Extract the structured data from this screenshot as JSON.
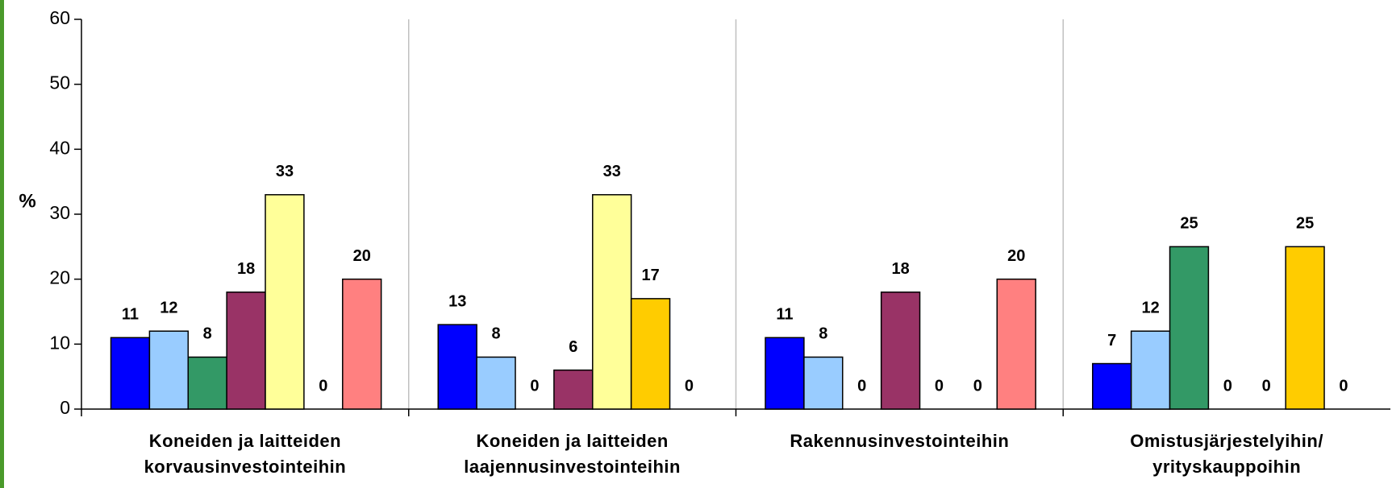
{
  "chart_data": {
    "type": "bar",
    "y_label": "%",
    "categories": [
      "Koneiden ja laitteiden korvausinvestointeihin",
      "Koneiden ja laitteiden laajennusinvestointeihin",
      "Rakennusinvestointeihin",
      "Omistusjärjestelyihin/ yrityskauppoihin"
    ],
    "series": [
      {
        "color": "#0000ff",
        "values": [
          11,
          13,
          11,
          7
        ]
      },
      {
        "color": "#99ccff",
        "values": [
          12,
          8,
          8,
          12
        ]
      },
      {
        "color": "#339966",
        "values": [
          8,
          0,
          0,
          25
        ]
      },
      {
        "color": "#993366",
        "values": [
          18,
          6,
          18,
          0
        ]
      },
      {
        "color": "#ffff99",
        "values": [
          33,
          33,
          0,
          0
        ]
      },
      {
        "color": "#ffcc00",
        "values": [
          0,
          17,
          0,
          25
        ]
      },
      {
        "color": "#ff8080",
        "values": [
          20,
          0,
          20,
          0
        ]
      }
    ],
    "ylim": [
      0,
      60
    ],
    "yticks": [
      0,
      10,
      20,
      30,
      40,
      50,
      60
    ],
    "grid": false
  }
}
